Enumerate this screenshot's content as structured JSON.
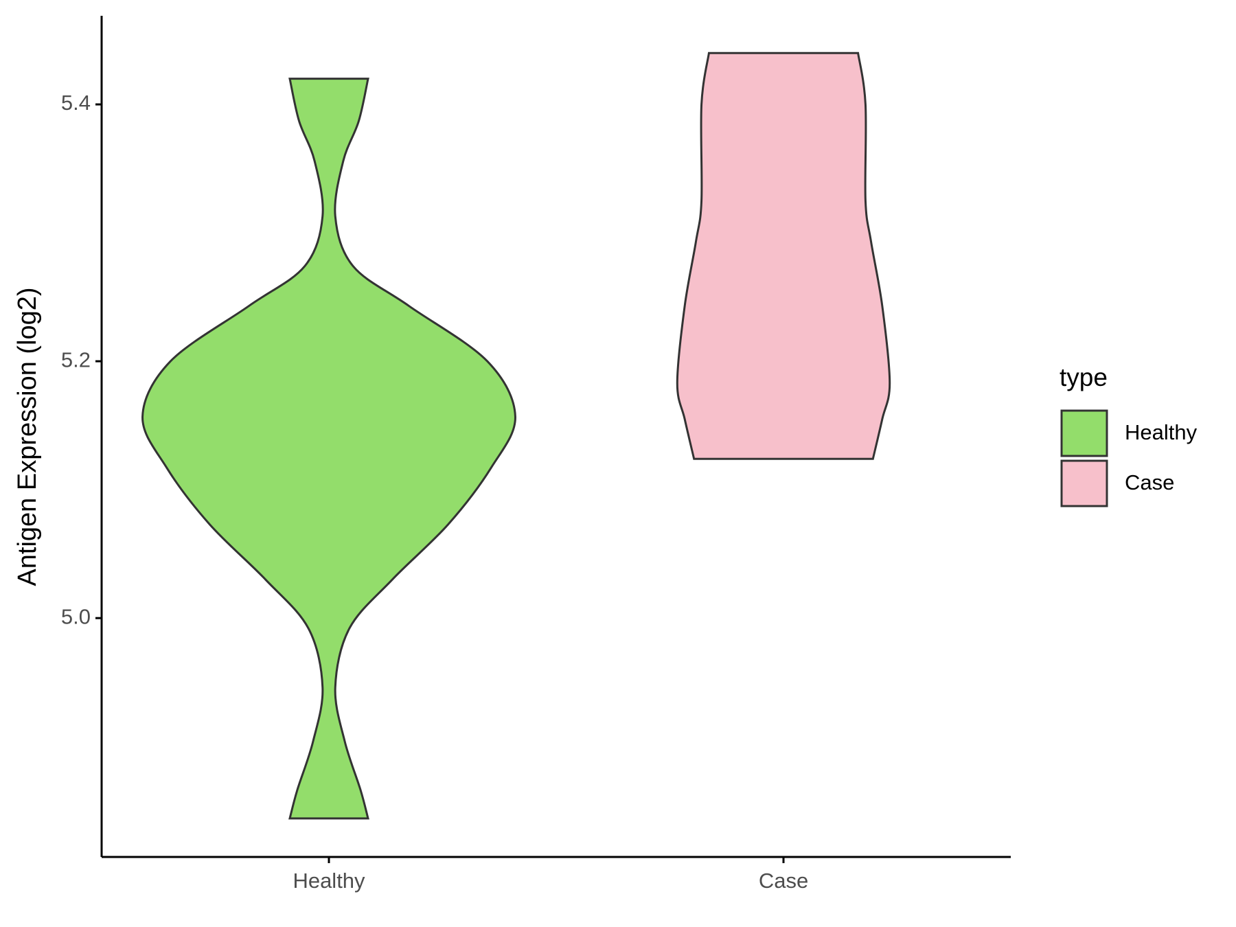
{
  "chart_data": {
    "type": "violin",
    "ylabel": "Antigen Expression (log2)",
    "categories": [
      "Healthy",
      "Case"
    ],
    "legend_title": "type",
    "legend": "right",
    "ylim": [
      4.814,
      5.469
    ],
    "yticks": [
      {
        "value": 5,
        "label": "5.0"
      },
      5.2,
      5.4
    ],
    "series": [
      {
        "name": "Healthy",
        "color": "#93dd6b",
        "y": [
          5.42,
          5.387,
          5.356,
          5.313,
          5.274,
          5.243,
          5.2,
          5.157,
          5.117,
          5.073,
          5.03,
          4.992,
          4.946,
          4.904,
          4.866,
          4.844
        ],
        "widths": [
          0.21,
          0.16,
          0.077,
          0.034,
          0.13,
          0.43,
          0.85,
          1,
          0.87,
          0.64,
          0.34,
          0.11,
          0.034,
          0.085,
          0.17,
          0.21
        ]
      },
      {
        "name": "Case",
        "color": "#f7c0cb",
        "y": [
          5.44,
          5.4,
          5.325,
          5.293,
          5.243,
          5.183,
          5.155,
          5.124
        ],
        "widths": [
          0.4,
          0.44,
          0.44,
          0.47,
          0.53,
          0.57,
          0.53,
          0.48
        ]
      }
    ]
  }
}
